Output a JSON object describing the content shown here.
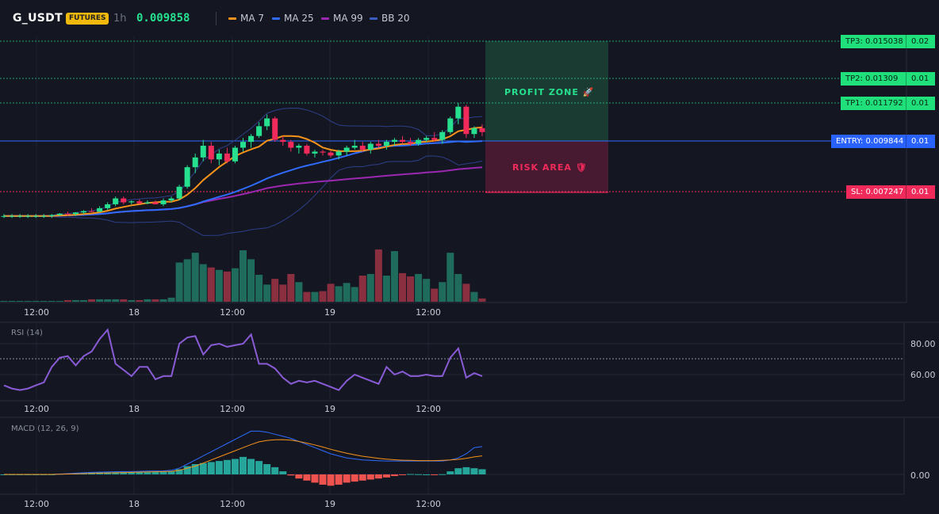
{
  "header": {
    "symbol": "G_USDT",
    "badge": "FUTURES",
    "timeframe": "1h",
    "price": "0.009858",
    "indicators": [
      {
        "label": "MA 7",
        "color": "#f7931a"
      },
      {
        "label": "MA 25",
        "color": "#2f6bff"
      },
      {
        "label": "MA 99",
        "color": "#9c27b0"
      },
      {
        "label": "BB 20",
        "color": "#3a5bbf"
      }
    ]
  },
  "zones": {
    "profit_label": "PROFIT ZONE 🚀",
    "risk_label": "RISK AREA 🛡"
  },
  "price_tags": {
    "tp3": "TP3: 0.015038",
    "tp3_right": "0.02",
    "tp2": "TP2: 0.01309",
    "tp2_right": "0.01",
    "tp1": "TP1: 0.011792",
    "tp1_right": "0.01",
    "entry": "ENTRY: 0.009844",
    "entry_right": "0.01",
    "sl": "SL: 0.007247",
    "sl_right": "0.01"
  },
  "time_axis": [
    "12:00",
    "18",
    "12:00",
    "19",
    "12:00"
  ],
  "rsi": {
    "title": "RSI (14)",
    "y_labels": [
      "80.00",
      "60.00"
    ],
    "values": [
      53,
      51,
      50,
      51,
      53,
      55,
      65,
      71,
      72,
      66,
      72,
      75,
      83,
      89,
      67,
      63,
      59,
      65,
      65,
      57,
      59,
      59,
      80,
      84,
      85,
      73,
      79,
      80,
      78,
      79,
      80,
      86,
      67,
      67,
      64,
      58,
      54,
      56,
      55,
      56,
      54,
      52,
      50,
      56,
      60,
      58,
      56,
      54,
      65,
      60,
      62,
      59,
      59,
      60,
      59,
      59,
      71,
      77,
      58,
      61,
      59
    ]
  },
  "macd": {
    "title": "MACD (12, 26, 9)",
    "y_labels": [
      "0.00"
    ],
    "macd": [
      0,
      0,
      0,
      0,
      0,
      0,
      0,
      0.2,
      0.4,
      0.6,
      0.8,
      1,
      1.1,
      1.2,
      1.3,
      1.4,
      1.4,
      1.5,
      1.6,
      1.6,
      1.7,
      2,
      3,
      5,
      7,
      9,
      11,
      13,
      15,
      17,
      19,
      21,
      21,
      20.5,
      19.5,
      18.5,
      17.5,
      16,
      14.5,
      13,
      11.5,
      10,
      9,
      8,
      7.5,
      7,
      6.8,
      6.6,
      6.5,
      6.5,
      6.5,
      6.5,
      6.5,
      6.5,
      6.5,
      6.5,
      7,
      8,
      10,
      13,
      13.5
    ],
    "signal": [
      0,
      0,
      0,
      0,
      0,
      0,
      0,
      0.1,
      0.2,
      0.3,
      0.4,
      0.5,
      0.6,
      0.7,
      0.8,
      0.9,
      1,
      1.1,
      1.2,
      1.3,
      1.4,
      1.5,
      2,
      3,
      4,
      5.5,
      7,
      8.5,
      10,
      11.5,
      13,
      14.5,
      15.8,
      16.5,
      16.8,
      16.9,
      16.6,
      16,
      15.2,
      14.3,
      13.3,
      12.2,
      11.2,
      10.3,
      9.5,
      8.8,
      8.3,
      7.8,
      7.4,
      7.1,
      6.9,
      6.8,
      6.7,
      6.7,
      6.7,
      6.8,
      7,
      7.3,
      7.8,
      8.5,
      9
    ],
    "hist": [
      0,
      0,
      0,
      0,
      0,
      0,
      0,
      0.3,
      0.4,
      0.5,
      0.7,
      0.9,
      1,
      1.1,
      1.1,
      1.2,
      1.2,
      1.2,
      1.2,
      1.2,
      1.2,
      1.5,
      2.5,
      4,
      5,
      5.5,
      6,
      6.5,
      7,
      7.5,
      8.5,
      7.5,
      6.5,
      5,
      3.5,
      1.5,
      -0.5,
      -2,
      -3,
      -4,
      -5,
      -5.5,
      -5,
      -4,
      -3.5,
      -3,
      -2.5,
      -2,
      -1.5,
      -0.8,
      -0.3,
      0.2,
      0.1,
      0,
      -0.1,
      0.1,
      1.5,
      3,
      3.5,
      3,
      2.5
    ]
  },
  "chart_data": {
    "type": "candlestick",
    "ma_overlays": [
      "MA 7",
      "MA 25",
      "MA 99",
      "BB 20"
    ],
    "levels": {
      "tp3": 0.015038,
      "tp2": 0.01309,
      "tp1": 0.011792,
      "entry": 0.009844,
      "sl": 0.007247
    },
    "volume": [
      1,
      1,
      1,
      1,
      1,
      1,
      1,
      1,
      2,
      2,
      2,
      3,
      3,
      3,
      3,
      3,
      2,
      2,
      3,
      3,
      3,
      5,
      48,
      52,
      60,
      46,
      42,
      39,
      37,
      41,
      63,
      52,
      33,
      21,
      28,
      21,
      34,
      24,
      12,
      12,
      13,
      22,
      19,
      23,
      18,
      32,
      34,
      64,
      32,
      62,
      35,
      31,
      34,
      28,
      16,
      24,
      60,
      34,
      22,
      12,
      4
    ],
    "candles": [
      [
        0.006,
        0.0061,
        0.0059,
        0.006
      ],
      [
        0.006,
        0.0061,
        0.0059,
        0.006
      ],
      [
        0.006,
        0.0061,
        0.0059,
        0.006
      ],
      [
        0.006,
        0.0061,
        0.0059,
        0.006
      ],
      [
        0.006,
        0.0061,
        0.0059,
        0.006
      ],
      [
        0.006,
        0.0061,
        0.0059,
        0.006
      ],
      [
        0.006,
        0.0061,
        0.0059,
        0.00605
      ],
      [
        0.00605,
        0.00615,
        0.006,
        0.00612
      ],
      [
        0.00612,
        0.00622,
        0.006,
        0.0061
      ],
      [
        0.0061,
        0.0062,
        0.006,
        0.00618
      ],
      [
        0.00618,
        0.0063,
        0.0061,
        0.00625
      ],
      [
        0.00625,
        0.0064,
        0.0062,
        0.00622
      ],
      [
        0.00622,
        0.0065,
        0.0062,
        0.0064
      ],
      [
        0.0064,
        0.0067,
        0.0063,
        0.0066
      ],
      [
        0.0066,
        0.007,
        0.0065,
        0.0069
      ],
      [
        0.0069,
        0.007,
        0.0066,
        0.0067
      ],
      [
        0.0067,
        0.0068,
        0.0066,
        0.00675
      ],
      [
        0.00675,
        0.00685,
        0.0066,
        0.00665
      ],
      [
        0.00665,
        0.0068,
        0.0066,
        0.0067
      ],
      [
        0.0067,
        0.0068,
        0.0066,
        0.0066
      ],
      [
        0.0066,
        0.0069,
        0.0065,
        0.0068
      ],
      [
        0.0068,
        0.007,
        0.0067,
        0.0069
      ],
      [
        0.0069,
        0.0076,
        0.0068,
        0.0075
      ],
      [
        0.0075,
        0.0086,
        0.0074,
        0.0085
      ],
      [
        0.0085,
        0.0092,
        0.0082,
        0.009
      ],
      [
        0.009,
        0.0099,
        0.0088,
        0.0096
      ],
      [
        0.0096,
        0.0098,
        0.0087,
        0.0089
      ],
      [
        0.0089,
        0.0094,
        0.0086,
        0.0092
      ],
      [
        0.0092,
        0.0095,
        0.0087,
        0.0088
      ],
      [
        0.0088,
        0.0096,
        0.0087,
        0.0095
      ],
      [
        0.0095,
        0.01,
        0.0093,
        0.0098
      ],
      [
        0.0098,
        0.0102,
        0.0095,
        0.0101
      ],
      [
        0.0101,
        0.0108,
        0.01,
        0.0106
      ],
      [
        0.0106,
        0.0112,
        0.0104,
        0.011
      ],
      [
        0.011,
        0.0111,
        0.0098,
        0.0099
      ],
      [
        0.0099,
        0.0101,
        0.0096,
        0.0098
      ],
      [
        0.0098,
        0.0099,
        0.0093,
        0.0095
      ],
      [
        0.0095,
        0.0097,
        0.0092,
        0.0096
      ],
      [
        0.0096,
        0.0097,
        0.0091,
        0.0092
      ],
      [
        0.0092,
        0.0094,
        0.009,
        0.0093
      ],
      [
        0.0093,
        0.0094,
        0.0091,
        0.00925
      ],
      [
        0.00925,
        0.00935,
        0.009,
        0.0091
      ],
      [
        0.0091,
        0.0094,
        0.0089,
        0.0093
      ],
      [
        0.0093,
        0.0096,
        0.0091,
        0.0095
      ],
      [
        0.0095,
        0.0099,
        0.0094,
        0.0096
      ],
      [
        0.0096,
        0.0098,
        0.0093,
        0.0094
      ],
      [
        0.0094,
        0.0098,
        0.0092,
        0.0097
      ],
      [
        0.0097,
        0.0099,
        0.0095,
        0.0096
      ],
      [
        0.0096,
        0.0099,
        0.0094,
        0.0098
      ],
      [
        0.0098,
        0.01,
        0.0096,
        0.0099
      ],
      [
        0.0099,
        0.0101,
        0.0097,
        0.0098
      ],
      [
        0.0098,
        0.01,
        0.0096,
        0.0097
      ],
      [
        0.0097,
        0.01,
        0.0096,
        0.0099
      ],
      [
        0.0099,
        0.0101,
        0.0098,
        0.01
      ],
      [
        0.01,
        0.0103,
        0.0098,
        0.0099
      ],
      [
        0.0099,
        0.0104,
        0.0097,
        0.0103
      ],
      [
        0.0103,
        0.0111,
        0.0102,
        0.011
      ],
      [
        0.011,
        0.0118,
        0.0107,
        0.0116
      ],
      [
        0.0116,
        0.0117,
        0.01,
        0.0102
      ],
      [
        0.0102,
        0.0106,
        0.01,
        0.0105
      ],
      [
        0.0105,
        0.0107,
        0.0101,
        0.0103
      ]
    ]
  }
}
